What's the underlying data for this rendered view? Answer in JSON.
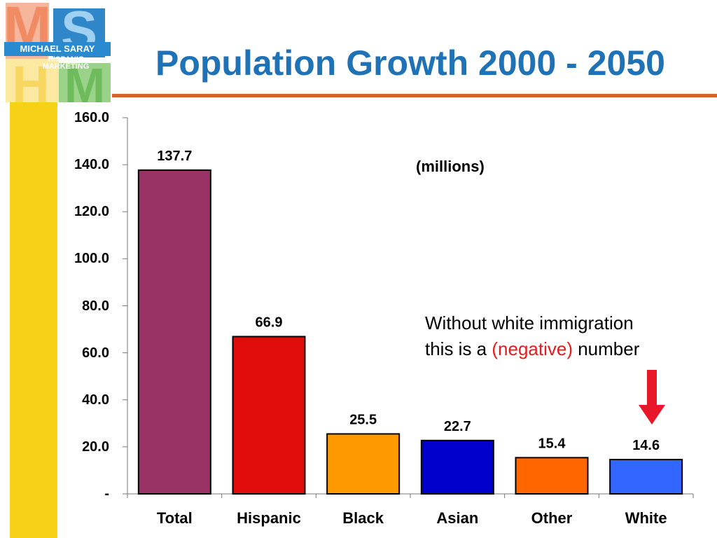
{
  "title": "Population Growth 2000 - 2050",
  "logo": {
    "line1": "MICHAEL SARAY",
    "line2": "HISPANIC",
    "line3": "MARKETING",
    "letters": [
      "M",
      "S",
      "H",
      "M"
    ]
  },
  "units_label": "(millions)",
  "note": {
    "line1": "Without white immigration",
    "line2_before": "this is a ",
    "line2_highlight": "(negative)",
    "line2_after": " number"
  },
  "colors": {
    "title": "#1e72b5",
    "accent_rule": "#d5622f",
    "sidebar": "#f6d117",
    "arrow": "#e8182a",
    "negative_text": "#e61b1b"
  },
  "chart_data": {
    "type": "bar",
    "categories": [
      "Total",
      "Hispanic",
      "Black",
      "Asian",
      "Other",
      "White"
    ],
    "values": [
      137.7,
      66.9,
      25.5,
      22.7,
      15.4,
      14.6
    ],
    "value_labels": [
      "137.7",
      "66.9",
      "25.5",
      "22.7",
      "15.4",
      "14.6"
    ],
    "bar_colors": [
      "#993366",
      "#e00b0b",
      "#ff9900",
      "#0000cc",
      "#ff6600",
      "#3366ff"
    ],
    "ylim": [
      0,
      160
    ],
    "yticks": [
      0,
      20,
      40,
      60,
      80,
      100,
      120,
      140,
      160
    ],
    "ytick_labels": [
      "-",
      "20.0",
      "40.0",
      "60.0",
      "80.0",
      "100.0",
      "120.0",
      "140.0",
      "160.0"
    ],
    "grid": false,
    "xlabel": "",
    "ylabel": ""
  }
}
